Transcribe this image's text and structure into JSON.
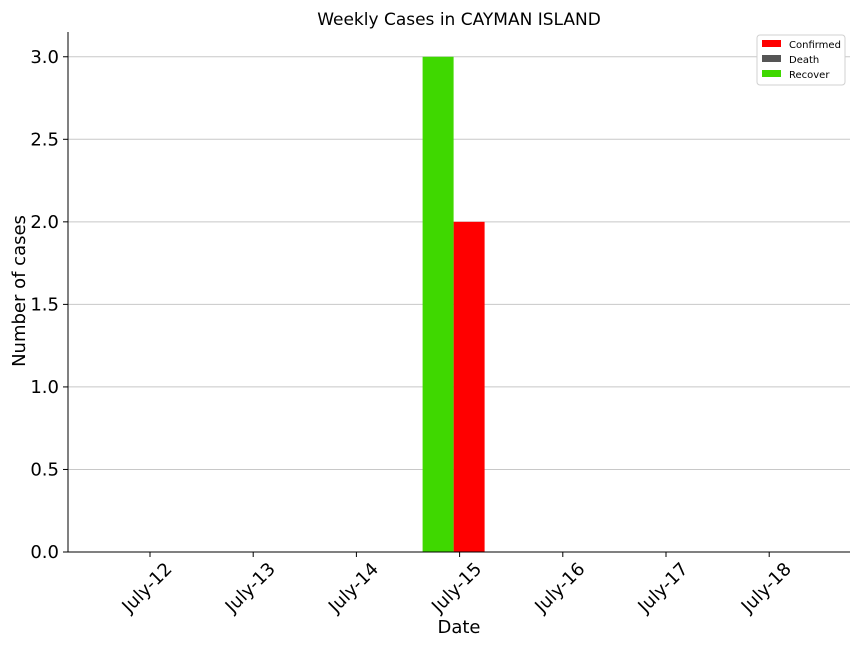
{
  "chart_data": {
    "type": "bar",
    "title": "Weekly Cases in CAYMAN ISLAND",
    "xlabel": "Date",
    "ylabel": "Number of cases",
    "categories": [
      "July-12",
      "July-13",
      "July-14",
      "July-15",
      "July-16",
      "July-17",
      "July-18"
    ],
    "series": [
      {
        "name": "Confirmed",
        "color": "#ff0000",
        "values": [
          0,
          0,
          0,
          2,
          0,
          0,
          0
        ]
      },
      {
        "name": "Death",
        "color": "#555555",
        "values": [
          0,
          0,
          0,
          0,
          0,
          0,
          0
        ]
      },
      {
        "name": "Recover",
        "color": "#3fd800",
        "values": [
          0,
          0,
          0,
          3,
          0,
          0,
          0
        ]
      }
    ],
    "ylim": [
      0,
      3.15
    ],
    "yticks": [
      "0.0",
      "0.5",
      "1.0",
      "1.5",
      "2.0",
      "2.5",
      "3.0"
    ],
    "grid": "horizontal",
    "legend": "top-right"
  }
}
